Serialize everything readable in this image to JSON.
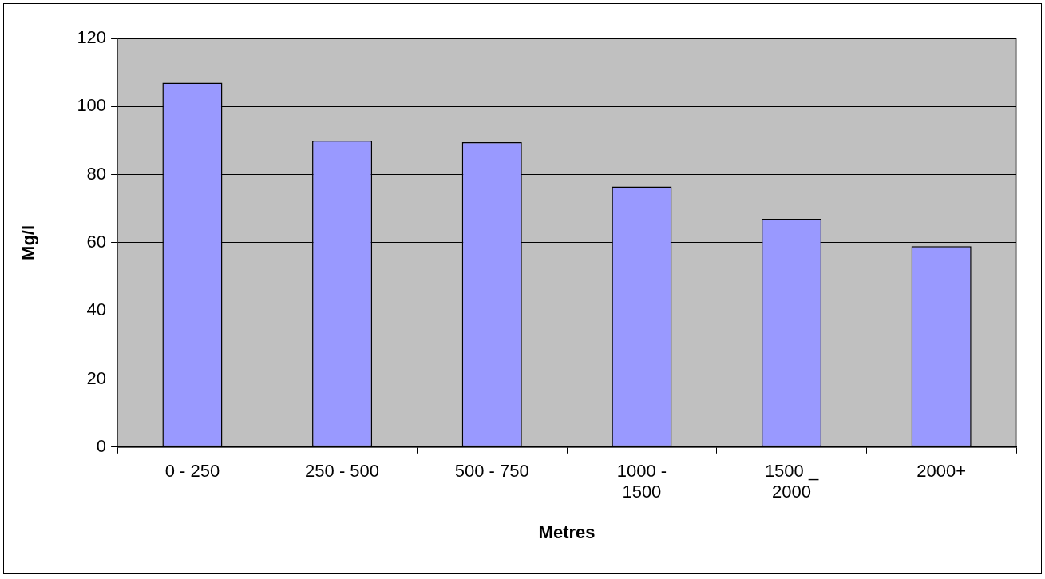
{
  "chart_data": {
    "type": "bar",
    "xlabel": "Metres",
    "ylabel": "Mg/l",
    "categories": [
      "0 - 250",
      "250 - 500",
      "500 - 750",
      "1000 - 1500",
      "1500 _ 2000",
      "2000+"
    ],
    "values": [
      107,
      90,
      89.5,
      76.5,
      67,
      59
    ],
    "color": "#9999ff",
    "ylim": [
      0,
      120
    ],
    "yticks": [
      0,
      20,
      40,
      60,
      80,
      100,
      120
    ],
    "grid": "y",
    "legend": false
  }
}
